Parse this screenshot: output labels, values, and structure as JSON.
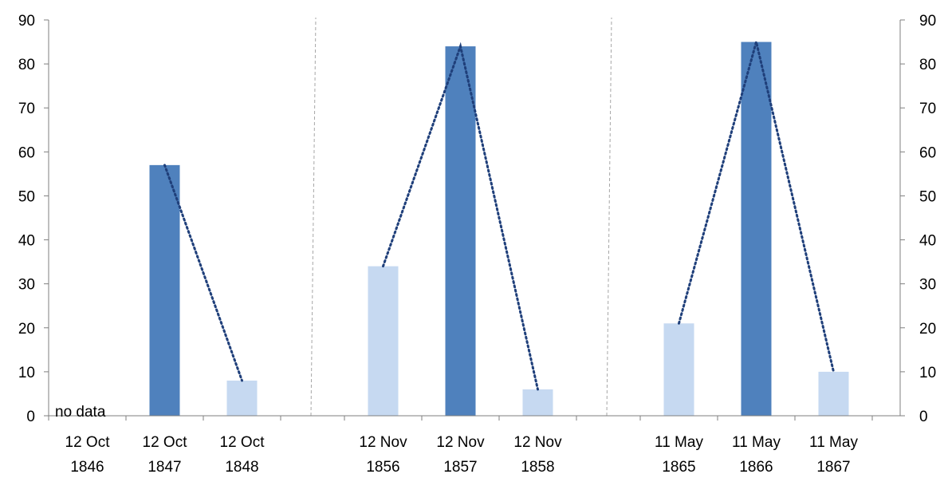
{
  "chart_data": {
    "type": "bar",
    "ylim": [
      0,
      90
    ],
    "yticks": [
      0,
      10,
      20,
      30,
      40,
      50,
      60,
      70,
      80,
      90
    ],
    "secondary_axis": true,
    "colors": {
      "dark": "#4f81bd",
      "light": "#c6d9f1",
      "line": "#1f3f7a",
      "axis": "#7f7f7f",
      "divider": "#a6a6a6"
    },
    "groups": [
      {
        "categories": [
          {
            "line1": "12 Oct",
            "line2": "1846",
            "value": null,
            "shade": "none",
            "note": "no data"
          },
          {
            "line1": "12 Oct",
            "line2": "1847",
            "value": 57,
            "shade": "dark"
          },
          {
            "line1": "12 Oct",
            "line2": "1848",
            "value": 8,
            "shade": "light"
          }
        ]
      },
      {
        "categories": [
          {
            "line1": "12 Nov",
            "line2": "1856",
            "value": 34,
            "shade": "light"
          },
          {
            "line1": "12 Nov",
            "line2": "1857",
            "value": 84,
            "shade": "dark"
          },
          {
            "line1": "12 Nov",
            "line2": "1858",
            "value": 6,
            "shade": "light"
          }
        ]
      },
      {
        "categories": [
          {
            "line1": "11 May",
            "line2": "1865",
            "value": 21,
            "shade": "light"
          },
          {
            "line1": "11 May",
            "line2": "1866",
            "value": 85,
            "shade": "dark"
          },
          {
            "line1": "11 May",
            "line2": "1867",
            "value": 10,
            "shade": "light"
          }
        ]
      }
    ],
    "grid": false,
    "legend": "none"
  }
}
